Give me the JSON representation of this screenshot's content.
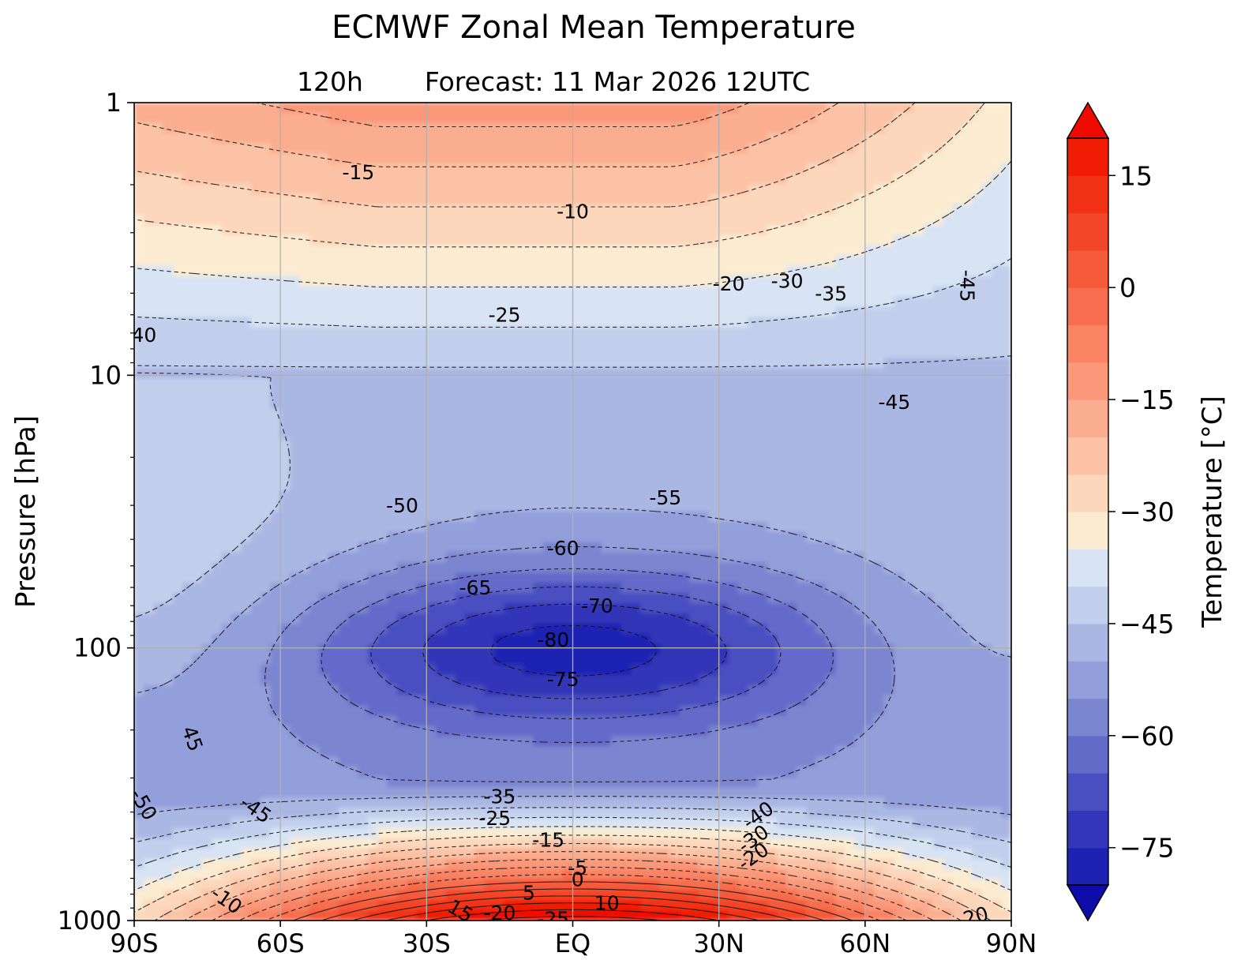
{
  "chart_data": {
    "type": "contour",
    "title": "ECMWF Zonal Mean Temperature",
    "subtitle_left": "120h",
    "subtitle_right": "Forecast:  11 Mar 2026  12UTC",
    "xlabel": "",
    "ylabel": "Pressure [hPa]",
    "colorbar_label": "Temperature [°C]",
    "x_ticks": [
      {
        "value": -90,
        "label": "90S"
      },
      {
        "value": -60,
        "label": "60S"
      },
      {
        "value": -30,
        "label": "30S"
      },
      {
        "value": 0,
        "label": "EQ"
      },
      {
        "value": 30,
        "label": "30N"
      },
      {
        "value": 60,
        "label": "60N"
      },
      {
        "value": 90,
        "label": "90N"
      }
    ],
    "y_scale": "log",
    "y_inverted": true,
    "ylim": [
      1000,
      1
    ],
    "y_ticks": [
      {
        "value": 1,
        "label": "1"
      },
      {
        "value": 10,
        "label": "10"
      },
      {
        "value": 100,
        "label": "100"
      },
      {
        "value": 1000,
        "label": "1000"
      }
    ],
    "grid": true,
    "colorbar": {
      "min": -85,
      "max": 25,
      "step": 5,
      "extend": "both",
      "ticks": [
        -75,
        -60,
        -45,
        -30,
        -15,
        0,
        15
      ],
      "tick_labels": [
        "−75",
        "−60",
        "−45",
        "−30",
        "−15",
        "0",
        "15"
      ],
      "colors": [
        "#0c0ca8",
        "#1d22b2",
        "#3236b8",
        "#4a4fc0",
        "#636bc9",
        "#7b86d0",
        "#939fda",
        "#abb7e3",
        "#c2cfec",
        "#d8e4f4",
        "#fbecd1",
        "#fcd7bb",
        "#fcc2a5",
        "#fbad8f",
        "#fa9879",
        "#f98363",
        "#f76e4e",
        "#f55a3a",
        "#f34527",
        "#f13114",
        "#f01d04",
        "#ef0a00"
      ]
    },
    "contour_labels": [
      {
        "text": "-15",
        "x": -44,
        "p": 1.8
      },
      {
        "text": "-10",
        "x": 0,
        "p": 2.5
      },
      {
        "text": "-20",
        "x": 32,
        "p": 4.6
      },
      {
        "text": "-30",
        "x": 44,
        "p": 4.5
      },
      {
        "text": "-35",
        "x": 53,
        "p": 5.0
      },
      {
        "text": "-45",
        "x": 81,
        "p": 4.7,
        "rotate": 90
      },
      {
        "text": "-25",
        "x": -14,
        "p": 6.0
      },
      {
        "text": "40",
        "x": -88,
        "p": 7.1
      },
      {
        "text": "-45",
        "x": 66,
        "p": 12.5
      },
      {
        "text": "-50",
        "x": -35,
        "p": 30
      },
      {
        "text": "-55",
        "x": 19,
        "p": 28
      },
      {
        "text": "-60",
        "x": -2,
        "p": 43
      },
      {
        "text": "-65",
        "x": -20,
        "p": 60
      },
      {
        "text": "-70",
        "x": 5,
        "p": 70
      },
      {
        "text": "-80",
        "x": -4,
        "p": 93
      },
      {
        "text": "-75",
        "x": -2,
        "p": 130
      },
      {
        "text": "45",
        "x": -78,
        "p": 215,
        "rotate": 70
      },
      {
        "text": "-50",
        "x": -88,
        "p": 375,
        "rotate": 60
      },
      {
        "text": "-45",
        "x": -65,
        "p": 390,
        "rotate": 35
      },
      {
        "text": "-35",
        "x": -15,
        "p": 350
      },
      {
        "text": "-25",
        "x": -16,
        "p": 420
      },
      {
        "text": "-15",
        "x": -5,
        "p": 505
      },
      {
        "text": "-40",
        "x": 38,
        "p": 410,
        "rotate": -35
      },
      {
        "text": "-30",
        "x": 37,
        "p": 500,
        "rotate": -35
      },
      {
        "text": "-20",
        "x": 37,
        "p": 580,
        "rotate": -35
      },
      {
        "text": "-5",
        "x": 1,
        "p": 640
      },
      {
        "text": "0",
        "x": 1,
        "p": 705
      },
      {
        "text": "-10",
        "x": -71,
        "p": 840,
        "rotate": 35
      },
      {
        "text": "5",
        "x": -9,
        "p": 790
      },
      {
        "text": "10",
        "x": 7,
        "p": 860
      },
      {
        "text": "15",
        "x": -23,
        "p": 920,
        "rotate": 30
      },
      {
        "text": "-20",
        "x": -15,
        "p": 935
      },
      {
        "text": "-25",
        "x": -4,
        "p": 985
      },
      {
        "text": "-20",
        "x": 82,
        "p": 970,
        "rotate": -15
      }
    ]
  }
}
